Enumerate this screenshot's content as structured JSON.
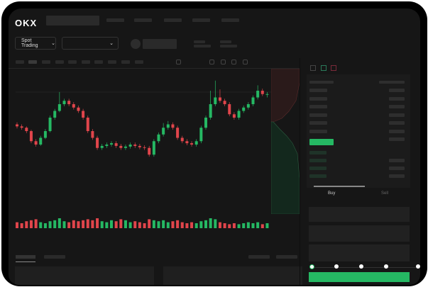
{
  "header": {
    "logo": "OKX",
    "market_selector": "Spot Trading"
  },
  "trade_panel": {
    "tabs": [
      "Buy",
      "Sell"
    ],
    "active_tab": "Buy",
    "slider_percent": 0
  },
  "colors": {
    "up": "#25b863",
    "down": "#e0454b",
    "accent": "#25b863",
    "background": "#161616"
  },
  "icons": [
    "chevron-down-icon",
    "indicator-icon",
    "ruler-icon",
    "camera-icon",
    "settings-icon",
    "fullscreen-icon",
    "orderbook-both-icon",
    "orderbook-bids-icon",
    "orderbook-asks-icon"
  ],
  "chart_data": {
    "type": "candlestick",
    "candles": [
      [
        70,
        73,
        64,
        67
      ],
      [
        67,
        70,
        62,
        65
      ],
      [
        65,
        67,
        57,
        60
      ],
      [
        60,
        62,
        42,
        45
      ],
      [
        45,
        48,
        37,
        40
      ],
      [
        40,
        53,
        38,
        50
      ],
      [
        50,
        63,
        48,
        60
      ],
      [
        60,
        83,
        58,
        80
      ],
      [
        80,
        93,
        77,
        90
      ],
      [
        90,
        118,
        88,
        100
      ],
      [
        100,
        108,
        97,
        105
      ],
      [
        105,
        108,
        97,
        100
      ],
      [
        100,
        103,
        92,
        95
      ],
      [
        95,
        98,
        87,
        90
      ],
      [
        90,
        93,
        77,
        80
      ],
      [
        80,
        83,
        57,
        60
      ],
      [
        60,
        63,
        47,
        50
      ],
      [
        50,
        53,
        32,
        35
      ],
      [
        35,
        41,
        32,
        38
      ],
      [
        38,
        43,
        35,
        40
      ],
      [
        40,
        45,
        37,
        42
      ],
      [
        42,
        45,
        35,
        38
      ],
      [
        38,
        41,
        32,
        35
      ],
      [
        35,
        40,
        32,
        37
      ],
      [
        37,
        43,
        34,
        40
      ],
      [
        40,
        43,
        35,
        38
      ],
      [
        38,
        41,
        33,
        36
      ],
      [
        36,
        39,
        32,
        35
      ],
      [
        35,
        38,
        22,
        25
      ],
      [
        25,
        48,
        22,
        45
      ],
      [
        45,
        58,
        42,
        55
      ],
      [
        55,
        72,
        52,
        65
      ],
      [
        65,
        75,
        62,
        70
      ],
      [
        70,
        73,
        62,
        65
      ],
      [
        65,
        68,
        47,
        50
      ],
      [
        50,
        53,
        42,
        45
      ],
      [
        45,
        48,
        39,
        42
      ],
      [
        42,
        45,
        37,
        40
      ],
      [
        40,
        48,
        37,
        45
      ],
      [
        45,
        68,
        42,
        65
      ],
      [
        65,
        83,
        62,
        80
      ],
      [
        80,
        120,
        77,
        100
      ],
      [
        100,
        135,
        97,
        110
      ],
      [
        110,
        122,
        102,
        105
      ],
      [
        105,
        108,
        97,
        100
      ],
      [
        100,
        103,
        82,
        85
      ],
      [
        85,
        88,
        77,
        80
      ],
      [
        80,
        93,
        77,
        90
      ],
      [
        90,
        98,
        87,
        95
      ],
      [
        95,
        103,
        92,
        100
      ],
      [
        100,
        113,
        97,
        110
      ],
      [
        110,
        128,
        107,
        120
      ],
      [
        120,
        123,
        112,
        115
      ],
      [
        115,
        118,
        110,
        115
      ]
    ],
    "volume": [
      6,
      5,
      7,
      8,
      9,
      6,
      5,
      7,
      8,
      10,
      7,
      6,
      8,
      7,
      8,
      9,
      8,
      10,
      7,
      6,
      8,
      7,
      9,
      8,
      6,
      7,
      6,
      5,
      9,
      8,
      7,
      8,
      6,
      7,
      8,
      6,
      5,
      6,
      5,
      7,
      8,
      10,
      9,
      6,
      5,
      4,
      5,
      4,
      5,
      6,
      5,
      6,
      4,
      5
    ]
  }
}
